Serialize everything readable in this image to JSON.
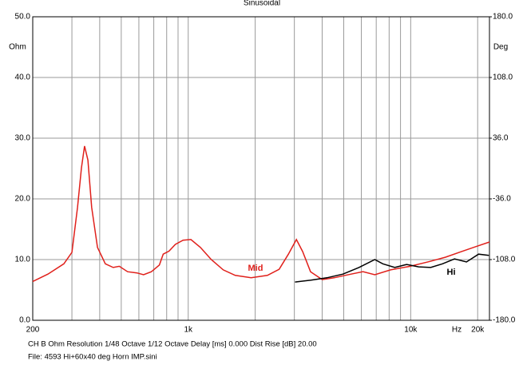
{
  "chart_data": {
    "type": "line",
    "title": "Sinusoidal",
    "y_unit": "Ohm",
    "y2_unit": "Deg",
    "x_unit": "Hz",
    "x_log": true,
    "grid": true,
    "xlim": [
      200,
      22600
    ],
    "xticks": [
      {
        "value": 200,
        "label": "200"
      },
      {
        "value": 1000,
        "label": "1k"
      },
      {
        "value": 10000,
        "label": "10k"
      },
      {
        "value": 20000,
        "label": "20k"
      }
    ],
    "xgrid": [
      300,
      400,
      500,
      600,
      700,
      800,
      900,
      2000,
      3000,
      4000,
      5000,
      6000,
      7000,
      8000,
      9000
    ],
    "ylim": [
      0,
      50
    ],
    "yticks": [
      {
        "value": 0,
        "label": "0.0"
      },
      {
        "value": 10,
        "label": "10.0"
      },
      {
        "value": 20,
        "label": "20.0"
      },
      {
        "value": 30,
        "label": "30.0"
      },
      {
        "value": 40,
        "label": "40.0"
      },
      {
        "value": 50,
        "label": "50.0"
      }
    ],
    "y2lim": [
      -180,
      180
    ],
    "y2ticks": [
      {
        "value": 180,
        "label": "180.0"
      },
      {
        "value": 108,
        "label": "108.0"
      },
      {
        "value": 36,
        "label": "36.0"
      },
      {
        "value": -36,
        "label": "-36.0"
      },
      {
        "value": -108,
        "label": "-108.0"
      },
      {
        "value": -180,
        "label": "-180.0"
      }
    ],
    "series": [
      {
        "name": "Mid",
        "color": "#e0201b",
        "x": [
          200,
          234,
          276,
          300,
          318,
          331,
          342,
          354,
          368,
          391,
          424,
          460,
          490,
          534,
          588,
          630,
          683,
          742,
          772,
          820,
          875,
          948,
          1028,
          1134,
          1269,
          1437,
          1627,
          1918,
          2269,
          2562,
          2820,
          3063,
          3270,
          3545,
          4005,
          4527,
          5397,
          6103,
          6900,
          8116,
          9950,
          12200,
          14350,
          16880,
          19850,
          22600
        ],
        "values": [
          6.4,
          7.6,
          9.3,
          11.2,
          18.6,
          25.1,
          28.7,
          26.4,
          18.6,
          12,
          9.3,
          8.7,
          8.9,
          8,
          7.8,
          7.5,
          8,
          9.1,
          10.9,
          11.4,
          12.5,
          13.2,
          13.3,
          12,
          10,
          8.3,
          7.4,
          7,
          7.4,
          8.4,
          10.9,
          13.3,
          11.3,
          8,
          6.7,
          7,
          7.6,
          8,
          7.5,
          8.3,
          8.9,
          9.7,
          10.4,
          11.3,
          12.2,
          12.9
        ]
      },
      {
        "name": "Hi",
        "color": "#000000",
        "x": [
          3020,
          3565,
          4200,
          4960,
          5850,
          6900,
          7490,
          8480,
          9600,
          10860,
          12300,
          13900,
          15740,
          17820,
          20200,
          22460
        ],
        "values": [
          6.3,
          6.6,
          7,
          7.6,
          8.7,
          10,
          9.3,
          8.7,
          9.2,
          8.8,
          8.7,
          9.3,
          10.1,
          9.6,
          10.9,
          10.7
        ]
      }
    ],
    "footer": [
      "CH B   Ohm   Resolution 1/48 Octave   1/12 Octave   Delay [ms] 0.000   Dist Rise [dB] 20.00",
      "File: 4593 Hi+60x40 deg Horn  IMP.sini"
    ]
  }
}
